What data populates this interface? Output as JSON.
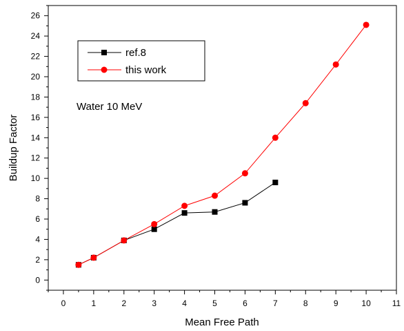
{
  "chart_data": {
    "type": "line",
    "title": "",
    "xlabel": "Mean Free Path",
    "ylabel": "Buildup Factor",
    "xlim": [
      -0.5,
      11
    ],
    "ylim": [
      -1,
      27
    ],
    "xticks": [
      0,
      1,
      2,
      3,
      4,
      5,
      6,
      7,
      8,
      9,
      10,
      11
    ],
    "yticks": [
      0,
      2,
      4,
      6,
      8,
      10,
      12,
      14,
      16,
      18,
      20,
      22,
      24,
      26
    ],
    "grid": false,
    "legend_position": "top-left",
    "annotation": "Water 10 MeV",
    "series": [
      {
        "name": "ref.8",
        "marker": "square",
        "color": "#000000",
        "x": [
          0.5,
          1,
          2,
          3,
          4,
          5,
          6,
          7
        ],
        "y": [
          1.5,
          2.2,
          3.9,
          5.0,
          6.6,
          6.7,
          7.6,
          9.6
        ]
      },
      {
        "name": "this work",
        "marker": "circle",
        "color": "#ff0000",
        "x": [
          0.5,
          1,
          2,
          3,
          4,
          5,
          6,
          7,
          8,
          9,
          10
        ],
        "y": [
          1.5,
          2.2,
          3.9,
          5.5,
          7.3,
          8.3,
          10.5,
          14.0,
          17.4,
          21.2,
          25.1
        ]
      }
    ]
  }
}
